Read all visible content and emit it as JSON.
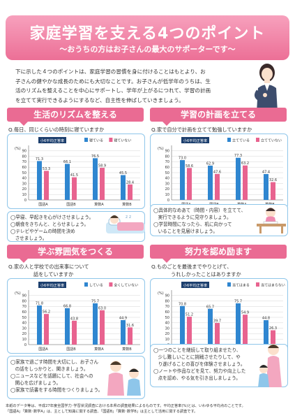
{
  "header": {
    "title": "家庭学習を支える4つのポイント",
    "subtitle": "〜おうちの方はお子さんの最大のサポーターです〜"
  },
  "intro": [
    "下に示した４つのポイントは、家庭学習の習慣を身に付けることはもとより、お",
    "子さんの健やかな成長のためにも大切なことです。お子さんが低学年のうちは、生",
    "活のリズムを整えることを中心にサポートし、学年が上がるにつれて、学習の計画",
    "を立てて実行できるようにするなど、自主性を伸ばしていきましょう。"
  ],
  "sections": [
    {
      "heading": "生活のリズムを整える",
      "question": "Q.毎日、同じくらいの時刻に寝ていますか",
      "tips": [
        "◯早寝、早起きを心がけさせましょう。",
        "◯朝食をきちんと、とらせましょう。",
        "◯テレビやゲームの時間を決め",
        "　させましょう。"
      ],
      "illus": "sleeping-child"
    },
    {
      "heading": "学習の計画を立てる",
      "question": "Q.家で自分で計画を立てて勉強していますか",
      "tips": [
        "◯具体的なめあて（時間・内容）を立てて、",
        "　実行できるように見守りましょう。",
        "◯学習時間になったら、机に向かって",
        "　いることを見届けましょう。"
      ],
      "illus": "studying-child"
    },
    {
      "heading": "学ぶ雰囲気をつくる",
      "question": "Q.家の人と学校での出来事について",
      "question2": "話をしていますか",
      "tips": [
        "◯家族で過ごす時間を大切にし、お子さん",
        "　の話をしっかりと、聞きましょう。",
        "◯ニュースなどを話題にして、社会への",
        "　関心を広げましょう。",
        "◯家族で読書をする時間をつくりましょう。"
      ],
      "illus": "family"
    },
    {
      "heading": "努力を認め励ます",
      "question": "Q.ものごとを最後までやりとげて、",
      "question2": "うれしかったことはありますか",
      "tips": [
        "◯一つのことを継続して取り組ませたり、",
        "　少し難しいことに挑戦させたりして、や",
        "　り遂げることの喜びを体験させましょう。",
        "◯ノートや作品などを見て、努力や向上した",
        "　点を認め、やる気を引き出しましょう。"
      ],
      "illus": "parent-child"
    }
  ],
  "footer": [
    "本紙のデータ等は、平成27年度全国学力･学習状況調査における本県の調査結果によるものです。平均正答率(%)とは、いわゆる平均点のことです。",
    "「国語A」「算数･数学A」は、主として知識に関する調査、「国語B」「算数･数学B」は主として活用に関する調査です。"
  ],
  "chart_data": [
    {
      "type": "bar",
      "legend_box": "小6平均正答率",
      "ylabel": "(%)",
      "ylim": [
        0,
        100
      ],
      "yticks": [
        "0",
        "10",
        "20",
        "30",
        "40",
        "50",
        "60",
        "70",
        "80",
        "90"
      ],
      "categories": [
        "国語A",
        "国語B",
        "算数A",
        "算数B"
      ],
      "series": [
        {
          "name": "寝ている",
          "color": "#2f86d0",
          "values": [
            71.3,
            66.1,
            76.5,
            45.5
          ]
        },
        {
          "name": "寝ていない",
          "color": "#e8638f",
          "values": [
            53.3,
            41.5,
            58.9,
            28.4
          ]
        }
      ],
      "value_labels": [
        [
          "71.3",
          "66.1",
          "76.5",
          "45.5"
        ],
        [
          "53.3",
          "41.5",
          "58.9",
          "28.4"
        ]
      ]
    },
    {
      "type": "bar",
      "legend_box": "小6平均正答率",
      "ylabel": "(%)",
      "ylim": [
        0,
        100
      ],
      "yticks": [
        "0",
        "10",
        "20",
        "30",
        "40",
        "50",
        "60",
        "70",
        "80",
        "90"
      ],
      "categories": [
        "国語A",
        "国語B",
        "算数A",
        "算数B"
      ],
      "series": [
        {
          "name": "立てている",
          "color": "#2f86d0",
          "values": [
            73.0,
            62.9,
            77.3,
            47.4
          ]
        },
        {
          "name": "立てていない",
          "color": "#e8638f",
          "values": [
            58.6,
            47.6,
            63.2,
            32.6
          ]
        }
      ],
      "value_labels": [
        [
          "73.0",
          "62.9",
          "77.3",
          "47.4"
        ],
        [
          "58.6",
          "47.6",
          "63.2",
          "32.6"
        ]
      ]
    },
    {
      "type": "bar",
      "legend_box": "小6平均正答率",
      "ylabel": "(%)",
      "ylim": [
        0,
        100
      ],
      "yticks": [
        "0",
        "10",
        "20",
        "30",
        "40",
        "50",
        "60",
        "70",
        "80",
        "90"
      ],
      "categories": [
        "国語A",
        "国語B",
        "算数A",
        "算数B"
      ],
      "series": [
        {
          "name": "している",
          "color": "#2f86d0",
          "values": [
            71.8,
            66.8,
            75.7,
            44.9
          ]
        },
        {
          "name": "全くしていない",
          "color": "#e8638f",
          "values": [
            56.2,
            43.8,
            63.0,
            31.6
          ]
        }
      ],
      "value_labels": [
        [
          "71.8",
          "66.8",
          "75.7",
          "44.9"
        ],
        [
          "56.2",
          "43.8",
          "63.0",
          "31.6"
        ]
      ]
    },
    {
      "type": "bar",
      "legend_box": "小6平均正答率",
      "ylabel": "(%)",
      "ylim": [
        0,
        100
      ],
      "yticks": [
        "0",
        "10",
        "20",
        "30",
        "40",
        "50",
        "60",
        "70",
        "80",
        "90"
      ],
      "categories": [
        "国語A",
        "国語B",
        "算数A",
        "算数B"
      ],
      "series": [
        {
          "name": "当てはまる",
          "color": "#2f86d0",
          "values": [
            70.8,
            65.7,
            75.7,
            44.8
          ]
        },
        {
          "name": "当てはまらない",
          "color": "#e8638f",
          "values": [
            51.2,
            39.7,
            54.9,
            26.3
          ]
        }
      ],
      "value_labels": [
        [
          "70.8",
          "65.7",
          "75.7",
          "44.8"
        ],
        [
          "51.2",
          "39.7",
          "54.9",
          "26.3"
        ]
      ]
    }
  ]
}
